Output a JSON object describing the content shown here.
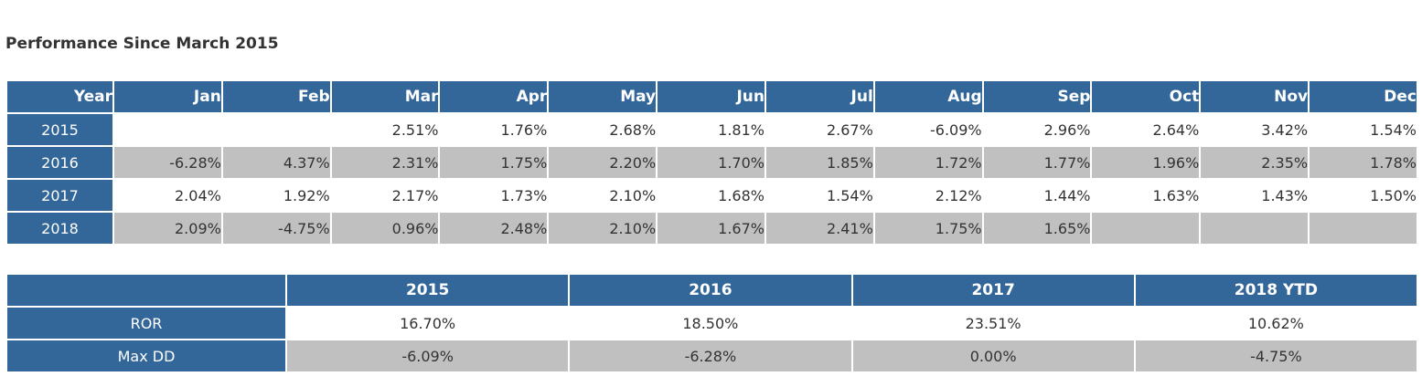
{
  "title": "Performance Since March 2015",
  "monthly": {
    "year_header": "Year",
    "months": [
      "Jan",
      "Feb",
      "Mar",
      "Apr",
      "May",
      "Jun",
      "Jul",
      "Aug",
      "Sep",
      "Oct",
      "Nov",
      "Dec"
    ],
    "rows": [
      {
        "year": "2015",
        "values": [
          "",
          "",
          "2.51%",
          "1.76%",
          "2.68%",
          "1.81%",
          "2.67%",
          "-6.09%",
          "2.96%",
          "2.64%",
          "3.42%",
          "1.54%"
        ]
      },
      {
        "year": "2016",
        "values": [
          "-6.28%",
          "4.37%",
          "2.31%",
          "1.75%",
          "2.20%",
          "1.70%",
          "1.85%",
          "1.72%",
          "1.77%",
          "1.96%",
          "2.35%",
          "1.78%"
        ]
      },
      {
        "year": "2017",
        "values": [
          "2.04%",
          "1.92%",
          "2.17%",
          "1.73%",
          "2.10%",
          "1.68%",
          "1.54%",
          "2.12%",
          "1.44%",
          "1.63%",
          "1.43%",
          "1.50%"
        ]
      },
      {
        "year": "2018",
        "values": [
          "2.09%",
          "-4.75%",
          "0.96%",
          "2.48%",
          "2.10%",
          "1.67%",
          "2.41%",
          "1.75%",
          "1.65%",
          "",
          "",
          ""
        ]
      }
    ]
  },
  "summary": {
    "corner": "",
    "columns": [
      "2015",
      "2016",
      "2017",
      "2018 YTD"
    ],
    "rows": [
      {
        "label": "ROR",
        "values": [
          "16.70%",
          "18.50%",
          "23.51%",
          "10.62%"
        ]
      },
      {
        "label": "Max DD",
        "values": [
          "-6.09%",
          "-6.28%",
          "0.00%",
          "-4.75%"
        ]
      }
    ]
  },
  "colors": {
    "header_bg": "#336699",
    "header_text": "#ffffff",
    "alt_row_bg": "#c0c0c0",
    "text": "#333333"
  }
}
